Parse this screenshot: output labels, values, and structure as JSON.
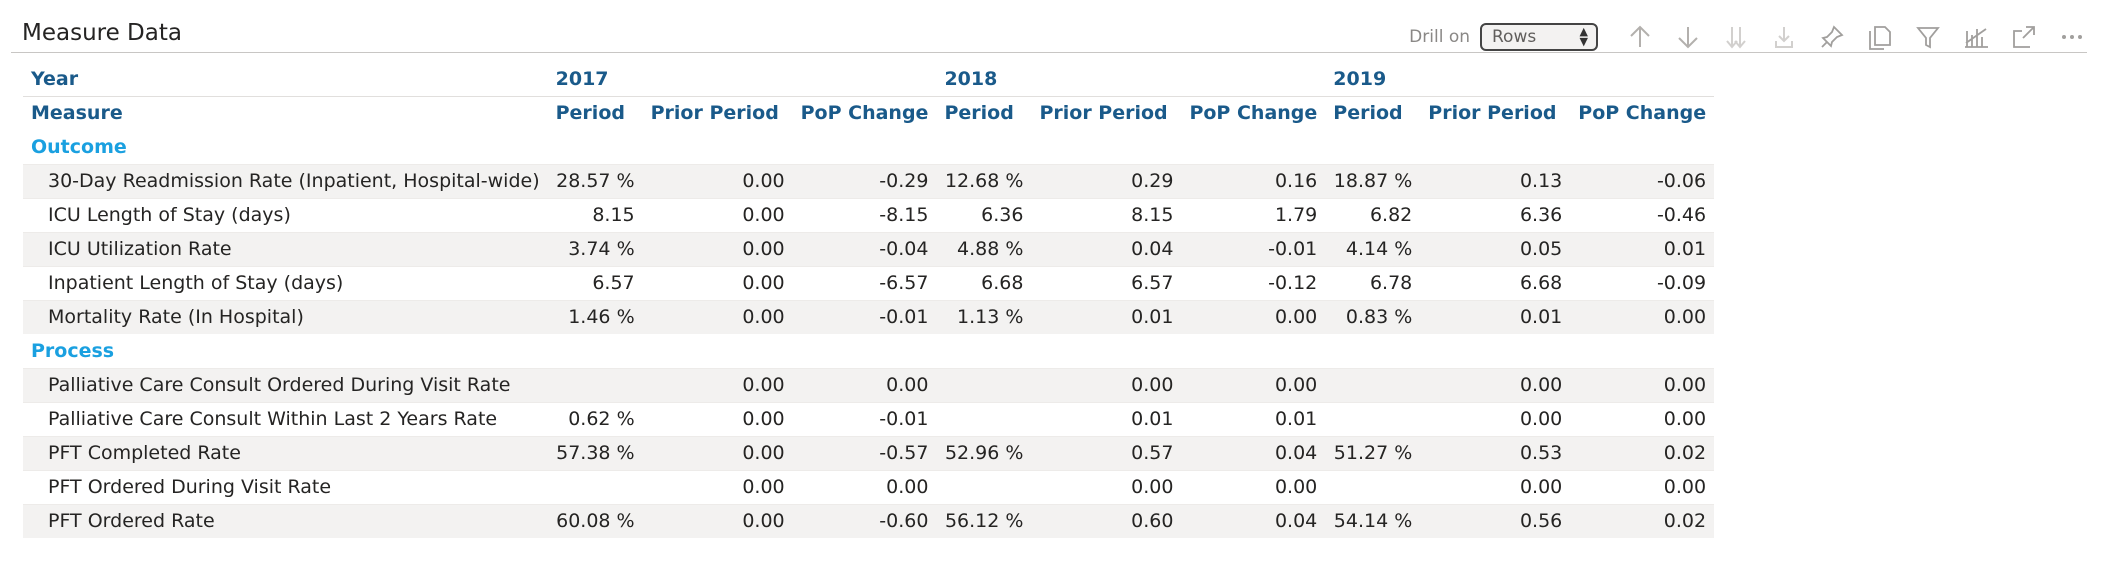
{
  "visual": {
    "title": "Measure Data",
    "drill_label": "Drill on",
    "drill_value": "Rows"
  },
  "toolbar_icons": [
    "arrow-up-icon",
    "arrow-down-icon",
    "double-arrow-down-icon",
    "expand-down-icon",
    "pin-icon",
    "copy-icon",
    "filter-icon",
    "analytics-icon",
    "focus-mode-icon",
    "more-options-icon"
  ],
  "header": {
    "year_label": "Year",
    "measure_label": "Measure",
    "years": [
      "2017",
      "2018",
      "2019"
    ],
    "period": "Period",
    "prior_period": "Prior Period",
    "pop_change": "PoP Change"
  },
  "groups": [
    {
      "name": "Outcome",
      "rows": [
        {
          "measure": "30-Day Readmission Rate (Inpatient, Hospital-wide)",
          "values": [
            "28.57 %",
            "0.00",
            "-0.29",
            "12.68 %",
            "0.29",
            "0.16",
            "18.87 %",
            "0.13",
            "-0.06"
          ]
        },
        {
          "measure": "ICU Length of Stay (days)",
          "values": [
            "8.15",
            "0.00",
            "-8.15",
            "6.36",
            "8.15",
            "1.79",
            "6.82",
            "6.36",
            "-0.46"
          ]
        },
        {
          "measure": "ICU Utilization Rate",
          "values": [
            "3.74 %",
            "0.00",
            "-0.04",
            "4.88 %",
            "0.04",
            "-0.01",
            "4.14 %",
            "0.05",
            "0.01"
          ]
        },
        {
          "measure": "Inpatient Length of Stay (days)",
          "values": [
            "6.57",
            "0.00",
            "-6.57",
            "6.68",
            "6.57",
            "-0.12",
            "6.78",
            "6.68",
            "-0.09"
          ]
        },
        {
          "measure": "Mortality Rate (In Hospital)",
          "values": [
            "1.46 %",
            "0.00",
            "-0.01",
            "1.13 %",
            "0.01",
            "0.00",
            "0.83 %",
            "0.01",
            "0.00"
          ]
        }
      ]
    },
    {
      "name": "Process",
      "rows": [
        {
          "measure": "Palliative Care Consult Ordered During Visit Rate",
          "values": [
            "",
            "0.00",
            "0.00",
            "",
            "0.00",
            "0.00",
            "",
            "0.00",
            "0.00"
          ]
        },
        {
          "measure": "Palliative Care Consult Within Last 2 Years Rate",
          "values": [
            "0.62 %",
            "0.00",
            "-0.01",
            "",
            "0.01",
            "0.01",
            "",
            "0.00",
            "0.00"
          ]
        },
        {
          "measure": "PFT Completed Rate",
          "values": [
            "57.38 %",
            "0.00",
            "-0.57",
            "52.96 %",
            "0.57",
            "0.04",
            "51.27 %",
            "0.53",
            "0.02"
          ]
        },
        {
          "measure": "PFT Ordered During Visit Rate",
          "values": [
            "",
            "0.00",
            "0.00",
            "",
            "0.00",
            "0.00",
            "",
            "0.00",
            "0.00"
          ]
        },
        {
          "measure": "PFT Ordered Rate",
          "values": [
            "60.08 %",
            "0.00",
            "-0.60",
            "56.12 %",
            "0.60",
            "0.04",
            "54.14 %",
            "0.56",
            "0.02"
          ]
        }
      ]
    }
  ]
}
